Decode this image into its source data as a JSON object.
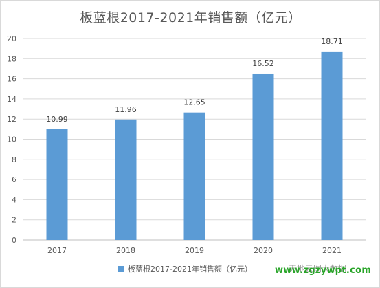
{
  "chart_data": {
    "type": "bar",
    "title": "板蓝根2017-2021年销售额（亿元）",
    "categories": [
      "2017",
      "2018",
      "2019",
      "2020",
      "2021"
    ],
    "series": [
      {
        "name": "板蓝根2017-2021年销售额（亿元）",
        "values": [
          10.99,
          11.96,
          12.65,
          16.52,
          18.71
        ]
      }
    ],
    "data_labels": [
      "10.99",
      "11.96",
      "12.65",
      "16.52",
      "18.71"
    ],
    "ylim": [
      0,
      20
    ],
    "yticks": [
      0,
      2,
      4,
      6,
      8,
      10,
      12,
      14,
      16,
      18,
      20
    ],
    "grid": true,
    "legend_position": "bottom",
    "color": "#5b9bd5"
  },
  "watermark": {
    "text": "www.zgzywpt.com",
    "subtext": "天地云图大数据"
  }
}
